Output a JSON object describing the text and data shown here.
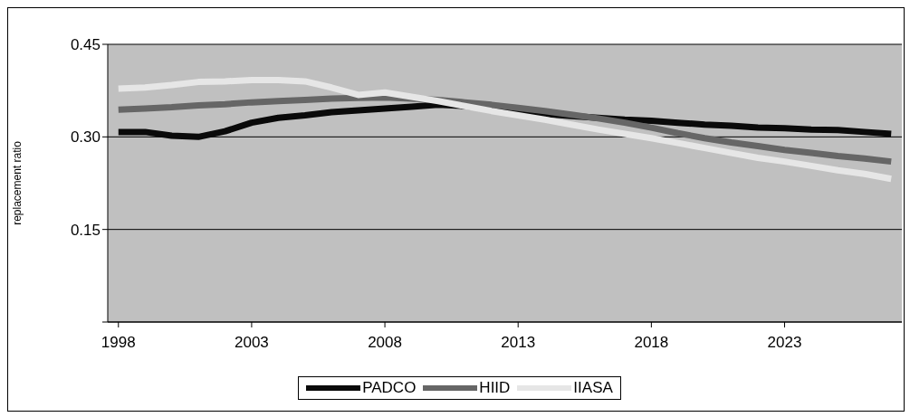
{
  "chart_data": {
    "type": "line",
    "ylabel": "replacement ratio",
    "x": [
      1998,
      1999,
      2000,
      2001,
      2002,
      2003,
      2004,
      2005,
      2006,
      2007,
      2008,
      2009,
      2010,
      2011,
      2012,
      2013,
      2014,
      2015,
      2016,
      2017,
      2018,
      2019,
      2020,
      2021,
      2022,
      2023,
      2024,
      2025,
      2026,
      2027
    ],
    "xlim": [
      1997.6,
      2027.4
    ],
    "xticks": [
      1998,
      2003,
      2008,
      2013,
      2018,
      2023
    ],
    "ylim": [
      0,
      0.45
    ],
    "yticks": [
      {
        "value": 0,
        "label": null
      },
      {
        "value": 0.15,
        "label": "0.15"
      },
      {
        "value": 0.3,
        "label": "0.30"
      },
      {
        "value": 0.45,
        "label": "0.45"
      }
    ],
    "grid": "y",
    "legend": "bottom",
    "marker": "none",
    "line_style": "solid",
    "series": [
      {
        "name": "PADCO",
        "color": "#0a0a0a",
        "values": [
          0.308,
          0.308,
          0.302,
          0.3,
          0.309,
          0.323,
          0.331,
          0.335,
          0.34,
          0.343,
          0.346,
          0.349,
          0.352,
          0.35,
          0.346,
          0.341,
          0.337,
          0.334,
          0.331,
          0.328,
          0.326,
          0.323,
          0.32,
          0.318,
          0.315,
          0.314,
          0.312,
          0.311,
          0.308,
          0.305
        ]
      },
      {
        "name": "HIID",
        "color": "#666666",
        "values": [
          0.344,
          0.346,
          0.348,
          0.351,
          0.353,
          0.356,
          0.358,
          0.36,
          0.362,
          0.363,
          0.364,
          0.362,
          0.36,
          0.356,
          0.352,
          0.347,
          0.342,
          0.336,
          0.33,
          0.323,
          0.315,
          0.306,
          0.298,
          0.291,
          0.285,
          0.279,
          0.274,
          0.269,
          0.265,
          0.26
        ]
      },
      {
        "name": "IIASA",
        "color": "#e6e6e6",
        "values": [
          0.378,
          0.38,
          0.384,
          0.389,
          0.39,
          0.392,
          0.392,
          0.39,
          0.38,
          0.368,
          0.372,
          0.365,
          0.358,
          0.35,
          0.342,
          0.335,
          0.328,
          0.32,
          0.312,
          0.305,
          0.298,
          0.29,
          0.282,
          0.274,
          0.266,
          0.26,
          0.253,
          0.246,
          0.24,
          0.232
        ]
      }
    ]
  }
}
